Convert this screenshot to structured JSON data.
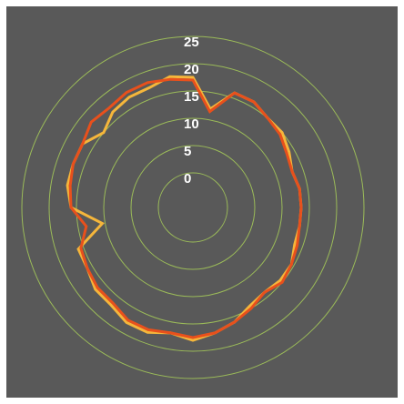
{
  "chart_data": {
    "type": "radar",
    "title": "",
    "legend": "none",
    "grid": true,
    "r_range": [
      0,
      25
    ],
    "r_ticks": [
      "0",
      "5",
      "10",
      "15",
      "20",
      "25"
    ],
    "categories": 36,
    "series": [
      {
        "color": "#f5b63b",
        "values": [
          17.5,
          12,
          16,
          16,
          15,
          15,
          14,
          13,
          13.5,
          13.5,
          13.5,
          13.5,
          14.5,
          14.5,
          14,
          14.5,
          16,
          17,
          18,
          17,
          18,
          18,
          17,
          17,
          16,
          16,
          10.5,
          16,
          17,
          17,
          17,
          15,
          16.5,
          17,
          17,
          18
        ]
      },
      {
        "color": "#e8501c",
        "values": [
          17,
          11.5,
          16,
          16,
          15,
          14.5,
          13.5,
          13,
          13.5,
          13.5,
          13.5,
          14,
          14.5,
          15,
          14,
          15,
          16,
          17,
          17.5,
          17,
          17.5,
          17.5,
          16.5,
          16.5,
          16,
          15.5,
          13.5,
          16,
          16.5,
          17,
          17,
          18,
          17.5,
          18,
          18,
          17.5
        ]
      }
    ],
    "colors": {
      "background": "#595959",
      "gridline": "#9bbb59",
      "tick_text": "#ffffff"
    }
  }
}
